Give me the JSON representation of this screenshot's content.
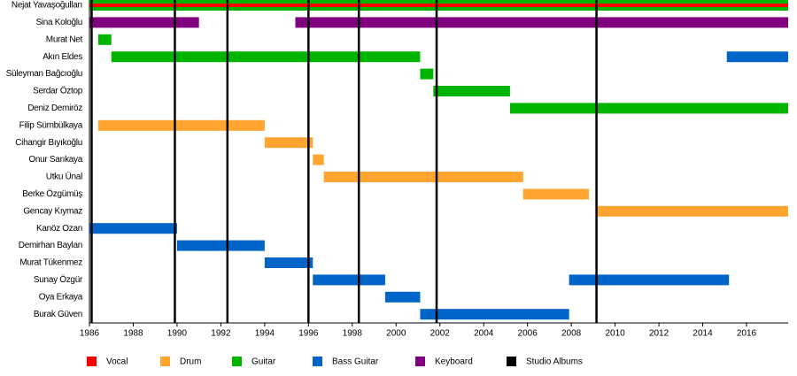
{
  "chart_data": {
    "type": "timeline",
    "roles": [
      {
        "name": "Vocal",
        "color": "#ff0000"
      },
      {
        "name": "Drum",
        "color": "#ffa530"
      },
      {
        "name": "Guitar",
        "color": "#00b400"
      },
      {
        "name": "Bass Guitar",
        "color": "#0064c8"
      },
      {
        "name": "Keyboard",
        "color": "#800080"
      },
      {
        "name": "Studio Albums",
        "color": "#000000"
      }
    ],
    "members": [
      {
        "name": "Nejat Yavaşoğulları",
        "spans": [
          {
            "role": 2,
            "start": 1986,
            "end": 2017.9
          },
          {
            "role": 0,
            "start": 1986,
            "end": 2017.9
          }
        ]
      },
      {
        "name": "Sina Koloğlu",
        "spans": [
          {
            "role": 4,
            "start": 1986,
            "end": 1991.0
          },
          {
            "role": 4,
            "start": 1995.4,
            "end": 2017.9
          }
        ]
      },
      {
        "name": "Murat Net",
        "spans": [
          {
            "role": 2,
            "start": 1986.4,
            "end": 1987.0
          }
        ]
      },
      {
        "name": "Akın Eldes",
        "spans": [
          {
            "role": 2,
            "start": 1987.0,
            "end": 2001.1
          },
          {
            "role": 3,
            "start": 2015.1,
            "end": 2017.9
          }
        ]
      },
      {
        "name": "Süleyman Bağcıoğlu",
        "spans": [
          {
            "role": 2,
            "start": 2001.1,
            "end": 2001.7
          }
        ]
      },
      {
        "name": "Serdar Öztop",
        "spans": [
          {
            "role": 2,
            "start": 2001.7,
            "end": 2005.2
          }
        ]
      },
      {
        "name": "Deniz Demiröz",
        "spans": [
          {
            "role": 2,
            "start": 2005.2,
            "end": 2017.9
          }
        ]
      },
      {
        "name": "Filip Sümbülkaya",
        "spans": [
          {
            "role": 1,
            "start": 1986.4,
            "end": 1994.0
          }
        ]
      },
      {
        "name": "Cihangir Bıyıkoğlu",
        "spans": [
          {
            "role": 1,
            "start": 1994.0,
            "end": 1996.2
          }
        ]
      },
      {
        "name": "Onur Sarıkaya",
        "spans": [
          {
            "role": 1,
            "start": 1996.2,
            "end": 1996.7
          }
        ]
      },
      {
        "name": "Utku Ünal",
        "spans": [
          {
            "role": 1,
            "start": 1996.7,
            "end": 2005.8
          }
        ]
      },
      {
        "name": "Berke Özgümüş",
        "spans": [
          {
            "role": 1,
            "start": 2005.8,
            "end": 2008.8
          }
        ]
      },
      {
        "name": "Gencay Kıymaz",
        "spans": [
          {
            "role": 1,
            "start": 2009.2,
            "end": 2017.9
          }
        ]
      },
      {
        "name": "Kanöz Ozan",
        "spans": [
          {
            "role": 3,
            "start": 1986.0,
            "end": 1990.0
          }
        ]
      },
      {
        "name": "Demirhan Baylan",
        "spans": [
          {
            "role": 3,
            "start": 1990.0,
            "end": 1994.0
          }
        ]
      },
      {
        "name": "Murat Tükenmez",
        "spans": [
          {
            "role": 3,
            "start": 1994.0,
            "end": 1996.2
          }
        ]
      },
      {
        "name": "Sunay Özgür",
        "spans": [
          {
            "role": 3,
            "start": 1996.2,
            "end": 1999.5
          },
          {
            "role": 3,
            "start": 2007.9,
            "end": 2015.2
          }
        ]
      },
      {
        "name": "Oya Erkaya",
        "spans": [
          {
            "role": 3,
            "start": 1999.5,
            "end": 2001.1
          }
        ]
      },
      {
        "name": "Burak Güven",
        "spans": [
          {
            "role": 3,
            "start": 2001.1,
            "end": 2007.9
          }
        ]
      }
    ],
    "albums": [
      1986.1,
      1989.9,
      1992.3,
      1996.0,
      1998.3,
      2001.85,
      2009.15
    ],
    "xlim": [
      1986,
      2017.9
    ],
    "xticks": [
      1986,
      1988,
      1990,
      1992,
      1994,
      1996,
      1998,
      2000,
      2002,
      2004,
      2006,
      2008,
      2010,
      2012,
      2014,
      2016
    ]
  }
}
